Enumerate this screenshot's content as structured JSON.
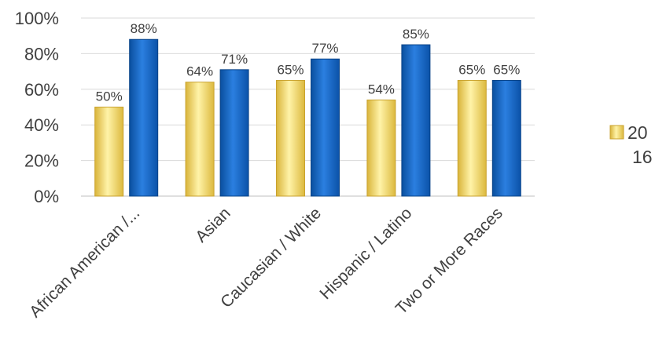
{
  "chart_data": {
    "type": "bar",
    "categories": [
      "African American /...",
      "Asian",
      "Caucasian / White",
      "Hispanic / Latino",
      "Two or More Races"
    ],
    "series": [
      {
        "values": [
          50,
          64,
          65,
          54,
          65
        ],
        "color": "#f2d45c"
      },
      {
        "values": [
          88,
          71,
          77,
          85,
          65
        ],
        "color": "#1464c8"
      }
    ],
    "y_ticks": [
      "0%",
      "20%",
      "40%",
      "60%",
      "80%",
      "100%"
    ],
    "data_labels": [
      [
        "50%",
        "64%",
        "65%",
        "54%",
        "65%"
      ],
      [
        "88%",
        "71%",
        "77%",
        "85%",
        "65%"
      ]
    ],
    "ylim": [
      0,
      100
    ],
    "grid": true,
    "legend_position": "right",
    "legend_text_lines": [
      "20",
      "16"
    ]
  }
}
